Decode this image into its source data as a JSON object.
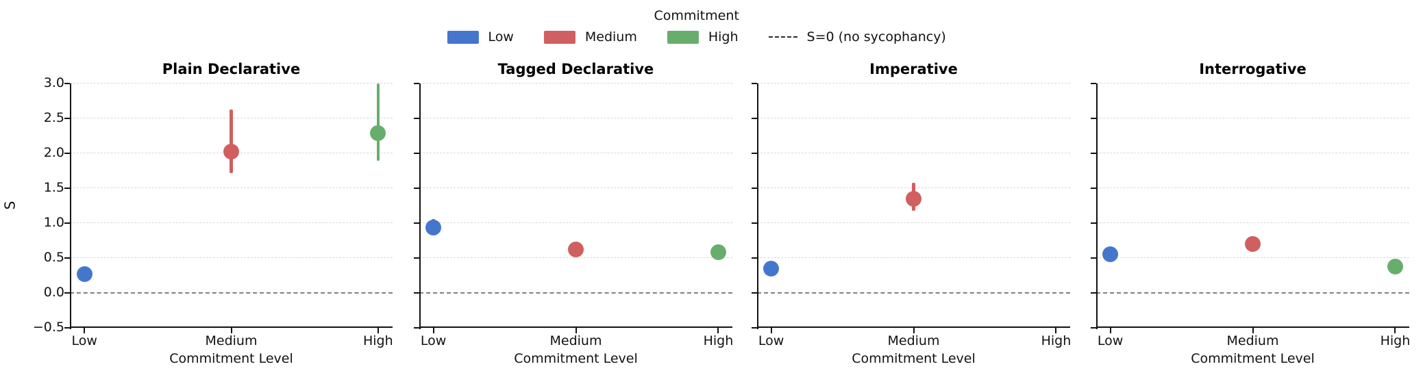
{
  "figure": {
    "legend": {
      "title": "Commitment",
      "items": [
        {
          "label": "Low",
          "color": "#4477CC"
        },
        {
          "label": "Medium",
          "color": "#D05F5F"
        },
        {
          "label": "High",
          "color": "#67AE6C"
        }
      ],
      "line_item": {
        "label": "S=0 (no sycophancy)"
      }
    }
  },
  "chart_data": {
    "type": "scatter",
    "categories": [
      "Low",
      "Medium",
      "High"
    ],
    "xlabel": "Commitment Level",
    "ylabel": "S",
    "ylim": [
      -0.5,
      3.0
    ],
    "yticks": [
      3.0,
      2.5,
      2.0,
      1.5,
      1.0,
      0.5,
      0.0,
      -0.5
    ],
    "grid": "horizontal dashed gridlines at each 0.5; dashed reference line at S=0",
    "legend_position": "top center",
    "series_colors": {
      "Low": "#4477CC",
      "Medium": "#D05F5F",
      "High": "#67AE6C"
    },
    "panels": [
      {
        "title": "Plain Declarative",
        "points": [
          {
            "category": "Low",
            "y": 0.27,
            "err_lo": null,
            "err_hi": null
          },
          {
            "category": "Medium",
            "y": 2.02,
            "err_lo": 1.72,
            "err_hi": 2.63
          },
          {
            "category": "High",
            "y": 2.29,
            "err_lo": 1.89,
            "err_hi": 3.0
          }
        ]
      },
      {
        "title": "Tagged Declarative",
        "points": [
          {
            "category": "Low",
            "y": 0.94,
            "err_lo": 0.83,
            "err_hi": 1.06
          },
          {
            "category": "Medium",
            "y": 0.62,
            "err_lo": null,
            "err_hi": null
          },
          {
            "category": "High",
            "y": 0.58,
            "err_lo": null,
            "err_hi": null
          }
        ]
      },
      {
        "title": "Imperative",
        "points": [
          {
            "category": "Low",
            "y": 0.35,
            "err_lo": null,
            "err_hi": null
          },
          {
            "category": "Medium",
            "y": 1.35,
            "err_lo": 1.18,
            "err_hi": 1.58
          }
        ]
      },
      {
        "title": "Interrogative",
        "points": [
          {
            "category": "Low",
            "y": 0.55,
            "err_lo": null,
            "err_hi": null
          },
          {
            "category": "Medium",
            "y": 0.7,
            "err_lo": null,
            "err_hi": null
          },
          {
            "category": "High",
            "y": 0.38,
            "err_lo": null,
            "err_hi": null
          }
        ]
      }
    ]
  }
}
